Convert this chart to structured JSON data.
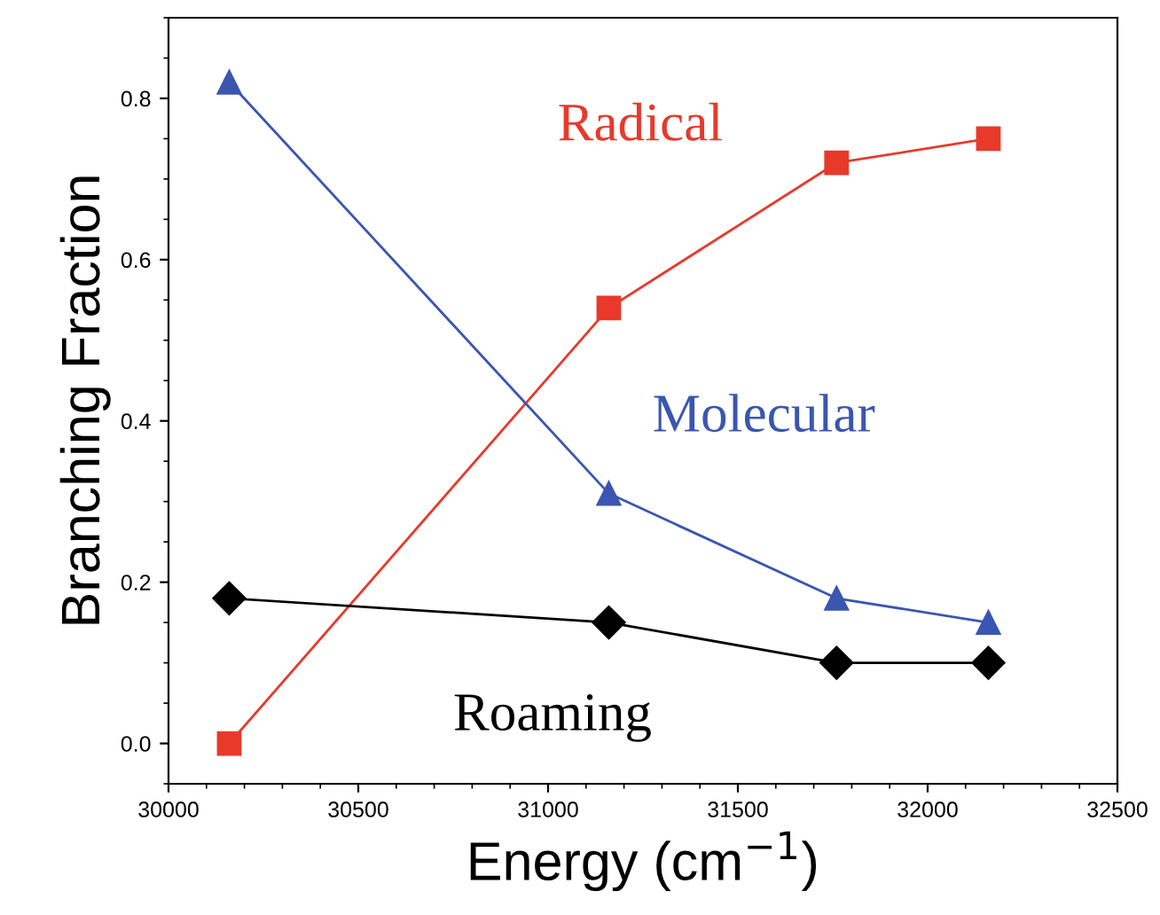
{
  "chart_data": {
    "type": "line",
    "xlabel": "Energy (cm$^{−1}$)",
    "ylabel": "Branching Fraction",
    "x": [
      30160,
      31160,
      31760,
      32160
    ],
    "series": [
      {
        "name": "Radical",
        "color": "#e8392b",
        "marker": "square",
        "values": [
          0.0,
          0.54,
          0.72,
          0.75
        ]
      },
      {
        "name": "Molecular",
        "color": "#3a56b0",
        "marker": "triangle",
        "values": [
          0.82,
          0.31,
          0.18,
          0.15
        ]
      },
      {
        "name": "Roaming",
        "color": "#000000",
        "marker": "diamond",
        "values": [
          0.18,
          0.15,
          0.1,
          0.1
        ]
      }
    ],
    "xlim": [
      30000,
      32500
    ],
    "xticks": [
      30000,
      30500,
      31000,
      31500,
      32000,
      32500
    ],
    "ylim": [
      -0.05,
      0.9
    ],
    "yticks": [
      {
        "value": 0,
        "label": "0.0"
      },
      0.2,
      0.4,
      0.6,
      0.8
    ],
    "grid": false,
    "legend": false,
    "line_style": "solid"
  }
}
